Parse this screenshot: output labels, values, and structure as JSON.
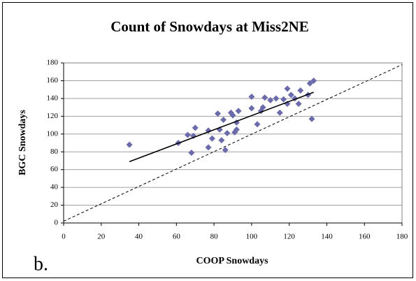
{
  "chart_data": {
    "type": "scatter",
    "title": "Count of Snowdays at Miss2NE",
    "xlabel": "COOP Snowdays",
    "ylabel": "BGC Snowdays",
    "panel_label": "b.",
    "xlim": [
      0,
      180
    ],
    "ylim": [
      0,
      180
    ],
    "xticks": [
      0,
      20,
      40,
      60,
      80,
      100,
      120,
      140,
      160,
      180
    ],
    "yticks": [
      0,
      20,
      40,
      60,
      80,
      100,
      120,
      140,
      160,
      180
    ],
    "grid": true,
    "series": [
      {
        "color": "#6b6bab",
        "x": [
          35,
          61,
          66,
          68,
          69,
          70,
          77,
          77,
          79,
          82,
          83,
          84,
          85,
          86,
          87,
          89,
          90,
          91,
          92,
          92,
          93,
          100,
          100,
          103,
          105,
          106,
          107,
          110,
          113,
          115,
          117,
          119,
          119,
          121,
          123,
          125,
          126,
          130,
          131,
          132,
          133
        ],
        "values": [
          88,
          90,
          99,
          79,
          98,
          107,
          85,
          104,
          95,
          123,
          105,
          93,
          116,
          82,
          101,
          124,
          121,
          102,
          113,
          105,
          126,
          142,
          129,
          111,
          126,
          130,
          141,
          138,
          140,
          124,
          139,
          134,
          151,
          144,
          140,
          134,
          149,
          144,
          157,
          117,
          160
        ]
      }
    ],
    "trendline": {
      "color": "#000000",
      "x": [
        35,
        133
      ],
      "values": [
        69,
        147
      ]
    },
    "reference_line": {
      "color": "#000000",
      "x": [
        0,
        180
      ],
      "values": [
        2,
        178
      ]
    }
  }
}
